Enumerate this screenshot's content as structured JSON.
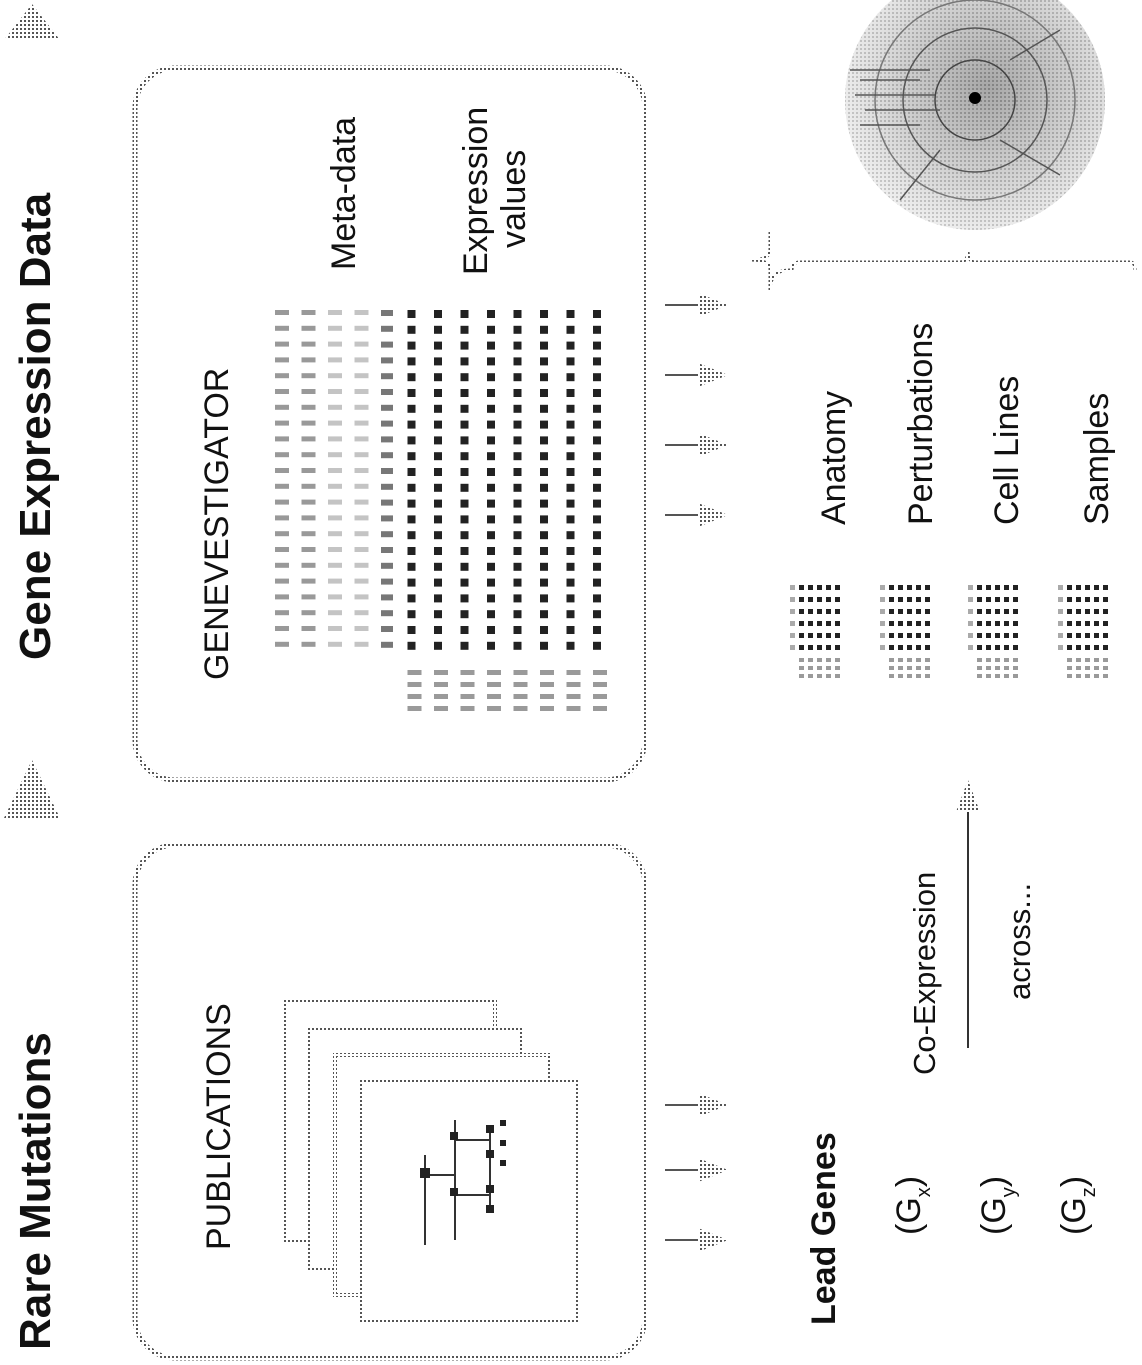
{
  "headings": {
    "rare_mutations": "Rare  Mutations",
    "gene_expression_data": "Gene Expression Data"
  },
  "publications_panel": {
    "title": "PUBLICATIONS"
  },
  "genevestigator_panel": {
    "title": "GENEVESTIGATOR",
    "metadata_label": "Meta-data",
    "expression_label_1": "Expression",
    "expression_label_2": "values"
  },
  "lead_genes": {
    "title": "Lead Genes",
    "genes": [
      {
        "base": "(G",
        "sub": "x",
        "close": ")"
      },
      {
        "base": "(G",
        "sub": "y",
        "close": ")"
      },
      {
        "base": "(G",
        "sub": "z",
        "close": ")"
      }
    ]
  },
  "coexpression": {
    "label": "Co-Expression",
    "across": "across..."
  },
  "categories": [
    "Anatomy",
    "Perturbations",
    "Cell Lines",
    "Samples"
  ],
  "colors": {
    "ink": "#111111",
    "frame": "#9a9a9a",
    "grid_dark": "#222222",
    "grid_mid": "#8a8a8a",
    "grid_light": "#c4c4c4"
  }
}
